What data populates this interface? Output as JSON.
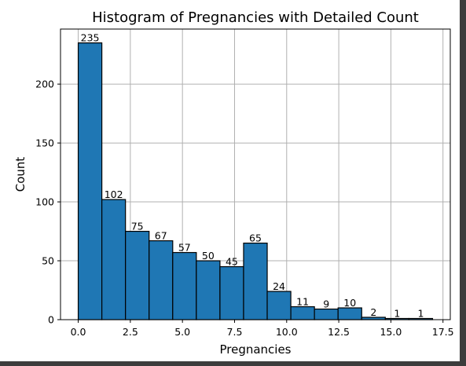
{
  "chart_data": {
    "type": "bar",
    "title": "Histogram of Pregnancies with Detailed Count",
    "xlabel": "Pregnancies",
    "ylabel": "Count",
    "bin_edges": [
      0,
      1.1333,
      2.2667,
      3.4,
      4.5333,
      5.6667,
      6.8,
      7.9333,
      9.0667,
      10.2,
      11.3333,
      12.4667,
      13.6,
      14.7333,
      15.8667,
      17
    ],
    "values": [
      235,
      102,
      75,
      67,
      57,
      50,
      45,
      65,
      24,
      11,
      9,
      10,
      2,
      1,
      1
    ],
    "data_labels": [
      "235",
      "102",
      "75",
      "67",
      "57",
      "50",
      "45",
      "65",
      "24",
      "11",
      "9",
      "10",
      "2",
      "1",
      "1"
    ],
    "xlim": [
      -0.85,
      17.85
    ],
    "ylim": [
      0,
      246.75
    ],
    "xticks": [
      0,
      2.5,
      5,
      7.5,
      10,
      12.5,
      15,
      17.5
    ],
    "xtick_labels": [
      "0.0",
      "2.5",
      "5.0",
      "7.5",
      "10.0",
      "12.5",
      "15.0",
      "17.5"
    ],
    "yticks": [
      0,
      50,
      100,
      150,
      200
    ],
    "ytick_labels": [
      "0",
      "50",
      "100",
      "150",
      "200"
    ],
    "grid": true,
    "bar_color": "#1f77b4",
    "edge_color": "#000000",
    "grid_color": "#b0b0b0"
  }
}
